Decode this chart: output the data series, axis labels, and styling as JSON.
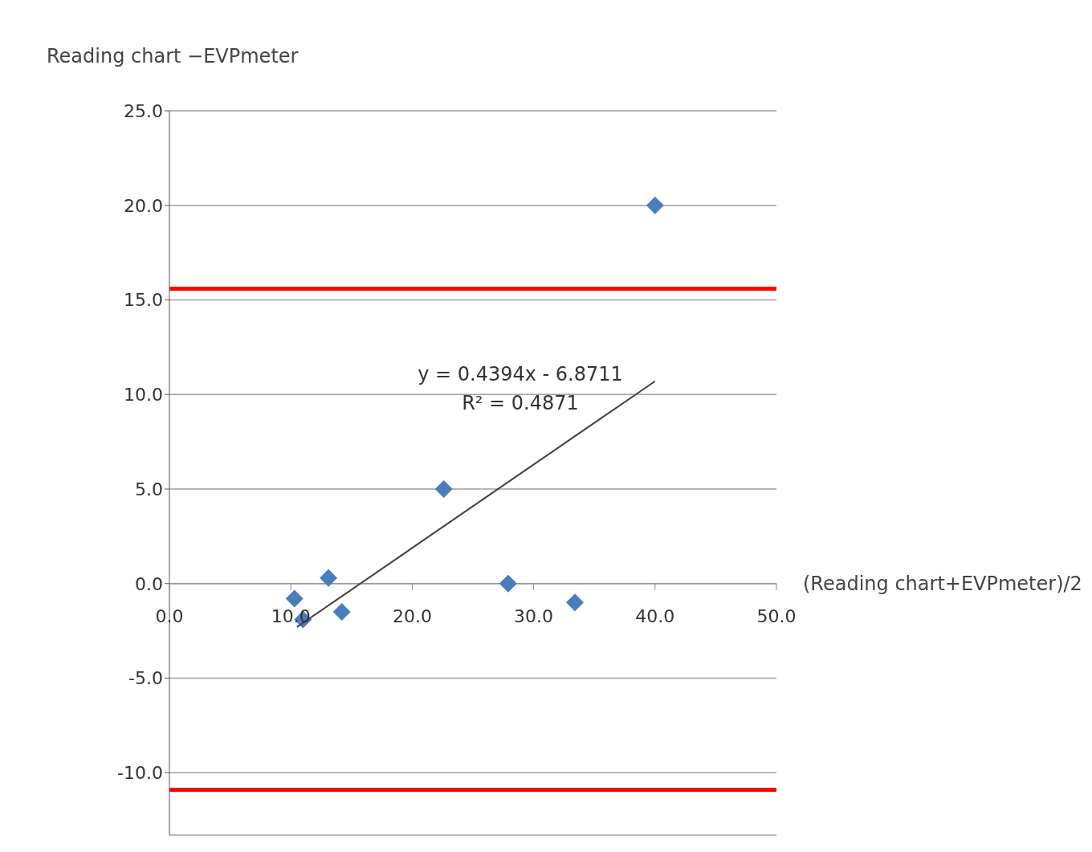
{
  "chart_data": {
    "type": "scatter",
    "ylabel": "Reading chart −EVPmeter",
    "xlabel": "(Reading chart+EVPmeter)/2",
    "series": [
      {
        "color": "#4a7ebb",
        "x": [
          10.3,
          11.0,
          13.1,
          14.2,
          22.6,
          27.9,
          33.4,
          40.0
        ],
        "values": [
          -0.8,
          -1.9,
          0.3,
          -1.5,
          5.0,
          0.0,
          -1.0,
          20.0
        ]
      },
      {
        "type": "line",
        "marker": "none",
        "color": "#404040",
        "x": [
          10.5,
          40.0
        ],
        "values": [
          -2.3,
          10.7
        ]
      }
    ],
    "annotations": [
      "y = 0.4394x - 6.8711",
      "R² = 0.4871"
    ],
    "ref_lines": [
      {
        "axis": "y",
        "value": 15.6,
        "label": null,
        "color": "#ff0000"
      },
      {
        "axis": "y",
        "value": -10.9,
        "label": null,
        "color": "#ff0000"
      }
    ],
    "marker": "diamond",
    "grid": "y",
    "xlim": [
      0,
      50
    ],
    "xticks": [
      {
        "value": 0,
        "label": "0.0"
      },
      {
        "value": 10,
        "label": "10.0"
      },
      {
        "value": 20,
        "label": "20.0"
      },
      {
        "value": 30,
        "label": "30.0"
      },
      {
        "value": 40,
        "label": "40.0"
      },
      {
        "value": 50,
        "label": "50.0"
      }
    ],
    "ylim": [
      -13.3,
      25
    ],
    "yticks": [
      {
        "value": -10,
        "label": "-10.0"
      },
      {
        "value": -5,
        "label": "-5.0"
      },
      {
        "value": 0,
        "label": "0.0"
      },
      {
        "value": 5,
        "label": "5.0"
      },
      {
        "value": 10,
        "label": "10.0"
      },
      {
        "value": 15,
        "label": "15.0"
      },
      {
        "value": 20,
        "label": "20.0"
      },
      {
        "value": 25,
        "label": "25.0"
      }
    ]
  }
}
